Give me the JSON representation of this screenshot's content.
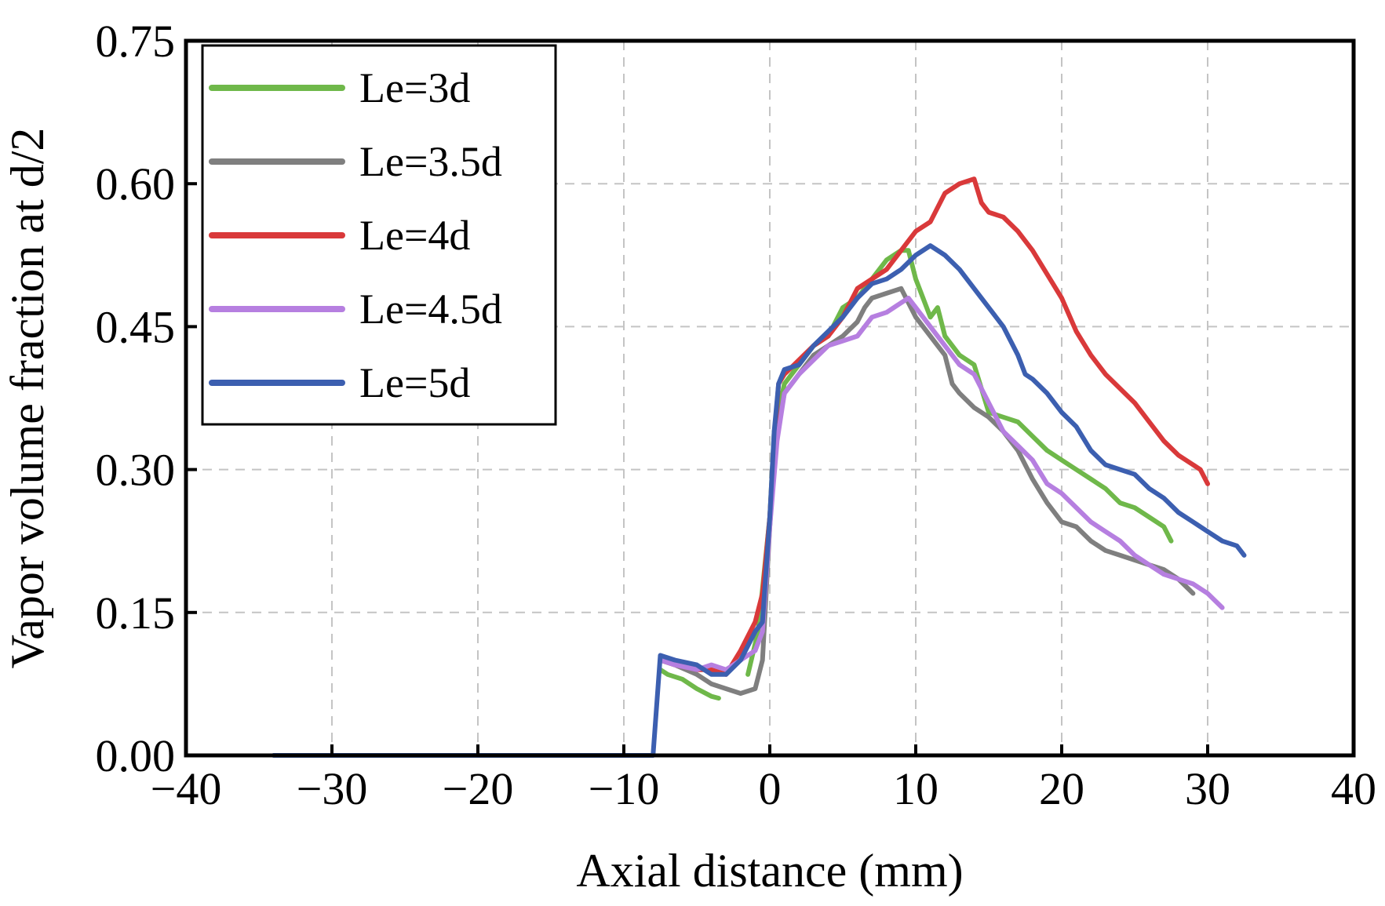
{
  "chart_data": {
    "type": "line",
    "title": "",
    "xlabel": "Axial distance (mm)",
    "ylabel": "Vapor volume fraction at d/2",
    "xlim": [
      -40,
      40
    ],
    "ylim": [
      0,
      0.75
    ],
    "xticks": [
      -40,
      -30,
      -20,
      -10,
      0,
      10,
      20,
      30,
      40
    ],
    "xtick_labels": [
      "−40",
      "−30",
      "−20",
      "−10",
      "0",
      "10",
      "20",
      "30",
      "40"
    ],
    "yticks": [
      0,
      0.15,
      0.3,
      0.45,
      0.6,
      0.75
    ],
    "ytick_labels": [
      "0.00",
      "0.15",
      "0.30",
      "0.45",
      "0.60",
      "0.75"
    ],
    "grid": true,
    "legend_position": "top-left",
    "series": [
      {
        "name": "Le=3d",
        "color": "#6fb84a",
        "points": [
          [
            -7.5,
            0.09
          ],
          [
            -7,
            0.085
          ],
          [
            -6,
            0.08
          ],
          [
            -5,
            0.07
          ],
          [
            -4,
            0.062
          ],
          [
            -3.5,
            0.06
          ]
        ]
      },
      {
        "name": "Le=3d",
        "color": "#6fb84a",
        "points": [
          [
            -1.5,
            0.085
          ],
          [
            -0.8,
            0.13
          ],
          [
            0,
            0.25
          ],
          [
            0.3,
            0.34
          ],
          [
            1,
            0.39
          ],
          [
            2,
            0.41
          ],
          [
            3,
            0.43
          ],
          [
            4,
            0.44
          ],
          [
            5,
            0.47
          ],
          [
            6,
            0.48
          ],
          [
            7,
            0.5
          ],
          [
            8,
            0.52
          ],
          [
            9,
            0.53
          ],
          [
            9.5,
            0.53
          ],
          [
            10,
            0.5
          ],
          [
            10.5,
            0.48
          ],
          [
            11,
            0.46
          ],
          [
            11.5,
            0.47
          ],
          [
            12,
            0.44
          ],
          [
            13,
            0.42
          ],
          [
            14,
            0.41
          ],
          [
            15,
            0.36
          ],
          [
            16,
            0.355
          ],
          [
            17,
            0.35
          ],
          [
            18,
            0.335
          ],
          [
            19,
            0.32
          ],
          [
            20,
            0.31
          ],
          [
            21,
            0.3
          ],
          [
            22,
            0.29
          ],
          [
            23,
            0.28
          ],
          [
            24,
            0.265
          ],
          [
            25,
            0.26
          ],
          [
            26,
            0.25
          ],
          [
            27,
            0.24
          ],
          [
            27.5,
            0.225
          ]
        ]
      },
      {
        "name": "Le=3.5d",
        "color": "#7f7f7f",
        "points": [
          [
            -7.5,
            0.1
          ],
          [
            -6.5,
            0.095
          ],
          [
            -5,
            0.085
          ],
          [
            -4,
            0.075
          ],
          [
            -3,
            0.07
          ],
          [
            -2,
            0.065
          ],
          [
            -1,
            0.07
          ],
          [
            -0.5,
            0.1
          ],
          [
            0,
            0.24
          ],
          [
            0.4,
            0.33
          ],
          [
            1,
            0.38
          ],
          [
            2,
            0.4
          ],
          [
            3,
            0.42
          ],
          [
            4,
            0.43
          ],
          [
            5,
            0.44
          ],
          [
            6,
            0.455
          ],
          [
            6.5,
            0.47
          ],
          [
            7,
            0.48
          ],
          [
            8,
            0.485
          ],
          [
            9,
            0.49
          ],
          [
            10,
            0.46
          ],
          [
            11,
            0.44
          ],
          [
            12,
            0.42
          ],
          [
            12.5,
            0.39
          ],
          [
            13,
            0.38
          ],
          [
            14,
            0.365
          ],
          [
            15,
            0.355
          ],
          [
            16,
            0.34
          ],
          [
            17,
            0.32
          ],
          [
            18,
            0.29
          ],
          [
            19,
            0.265
          ],
          [
            20,
            0.245
          ],
          [
            21,
            0.24
          ],
          [
            22,
            0.225
          ],
          [
            23,
            0.215
          ],
          [
            24,
            0.21
          ],
          [
            25,
            0.205
          ],
          [
            26,
            0.2
          ],
          [
            27,
            0.195
          ],
          [
            28,
            0.185
          ],
          [
            29,
            0.17
          ]
        ]
      },
      {
        "name": "Le=4d",
        "color": "#d9393a",
        "points": [
          [
            -7.5,
            0.1
          ],
          [
            -6.5,
            0.095
          ],
          [
            -5,
            0.09
          ],
          [
            -4,
            0.09
          ],
          [
            -3,
            0.085
          ],
          [
            -2,
            0.11
          ],
          [
            -1,
            0.14
          ],
          [
            -0.5,
            0.17
          ],
          [
            0,
            0.25
          ],
          [
            0.3,
            0.33
          ],
          [
            0.6,
            0.39
          ],
          [
            1,
            0.4
          ],
          [
            2,
            0.415
          ],
          [
            3,
            0.43
          ],
          [
            4,
            0.44
          ],
          [
            5,
            0.46
          ],
          [
            6,
            0.49
          ],
          [
            7,
            0.5
          ],
          [
            8,
            0.51
          ],
          [
            9,
            0.53
          ],
          [
            10,
            0.55
          ],
          [
            11,
            0.56
          ],
          [
            12,
            0.59
          ],
          [
            13,
            0.6
          ],
          [
            14,
            0.605
          ],
          [
            14.5,
            0.58
          ],
          [
            15,
            0.57
          ],
          [
            16,
            0.565
          ],
          [
            17,
            0.55
          ],
          [
            18,
            0.53
          ],
          [
            19,
            0.505
          ],
          [
            20,
            0.48
          ],
          [
            21,
            0.445
          ],
          [
            22,
            0.42
          ],
          [
            23,
            0.4
          ],
          [
            24,
            0.385
          ],
          [
            25,
            0.37
          ],
          [
            26,
            0.35
          ],
          [
            27,
            0.33
          ],
          [
            28,
            0.315
          ],
          [
            29,
            0.305
          ],
          [
            29.5,
            0.3
          ],
          [
            30,
            0.285
          ]
        ]
      },
      {
        "name": "Le=4.5d",
        "color": "#b67fe0",
        "points": [
          [
            -7.5,
            0.1
          ],
          [
            -6.5,
            0.095
          ],
          [
            -5,
            0.09
          ],
          [
            -4,
            0.095
          ],
          [
            -3,
            0.09
          ],
          [
            -2,
            0.1
          ],
          [
            -1,
            0.11
          ],
          [
            -0.5,
            0.13
          ],
          [
            0,
            0.24
          ],
          [
            0.5,
            0.33
          ],
          [
            1,
            0.38
          ],
          [
            2,
            0.4
          ],
          [
            3,
            0.415
          ],
          [
            4,
            0.43
          ],
          [
            5,
            0.435
          ],
          [
            6,
            0.44
          ],
          [
            7,
            0.46
          ],
          [
            8,
            0.465
          ],
          [
            9,
            0.475
          ],
          [
            9.5,
            0.48
          ],
          [
            10,
            0.47
          ],
          [
            11,
            0.45
          ],
          [
            12,
            0.43
          ],
          [
            13,
            0.41
          ],
          [
            14,
            0.4
          ],
          [
            15,
            0.37
          ],
          [
            16,
            0.34
          ],
          [
            17,
            0.325
          ],
          [
            18,
            0.31
          ],
          [
            19,
            0.285
          ],
          [
            20,
            0.275
          ],
          [
            21,
            0.26
          ],
          [
            22,
            0.245
          ],
          [
            23,
            0.235
          ],
          [
            24,
            0.225
          ],
          [
            25,
            0.21
          ],
          [
            26,
            0.2
          ],
          [
            27,
            0.19
          ],
          [
            28,
            0.185
          ],
          [
            29,
            0.18
          ],
          [
            30,
            0.17
          ],
          [
            31,
            0.155
          ]
        ]
      },
      {
        "name": "Le=5d",
        "color": "#3c5fb0",
        "points": [
          [
            -34,
            0
          ],
          [
            -8,
            0
          ],
          [
            -7.5,
            0.105
          ],
          [
            -6.5,
            0.1
          ],
          [
            -5,
            0.095
          ],
          [
            -4,
            0.085
          ],
          [
            -3,
            0.085
          ],
          [
            -2,
            0.1
          ],
          [
            -1,
            0.13
          ],
          [
            -0.5,
            0.14
          ],
          [
            0,
            0.25
          ],
          [
            0.3,
            0.34
          ],
          [
            0.6,
            0.39
          ],
          [
            1,
            0.405
          ],
          [
            2,
            0.41
          ],
          [
            3,
            0.43
          ],
          [
            4,
            0.445
          ],
          [
            5,
            0.46
          ],
          [
            6,
            0.48
          ],
          [
            7,
            0.495
          ],
          [
            8,
            0.5
          ],
          [
            9,
            0.51
          ],
          [
            10,
            0.525
          ],
          [
            11,
            0.535
          ],
          [
            12,
            0.525
          ],
          [
            13,
            0.51
          ],
          [
            14,
            0.49
          ],
          [
            15,
            0.47
          ],
          [
            16,
            0.45
          ],
          [
            17,
            0.42
          ],
          [
            17.5,
            0.4
          ],
          [
            18,
            0.395
          ],
          [
            19,
            0.38
          ],
          [
            20,
            0.36
          ],
          [
            21,
            0.345
          ],
          [
            22,
            0.32
          ],
          [
            23,
            0.305
          ],
          [
            24,
            0.3
          ],
          [
            25,
            0.295
          ],
          [
            26,
            0.28
          ],
          [
            27,
            0.27
          ],
          [
            28,
            0.255
          ],
          [
            29,
            0.245
          ],
          [
            30,
            0.235
          ],
          [
            31,
            0.225
          ],
          [
            32,
            0.22
          ],
          [
            32.5,
            0.21
          ]
        ]
      }
    ]
  }
}
